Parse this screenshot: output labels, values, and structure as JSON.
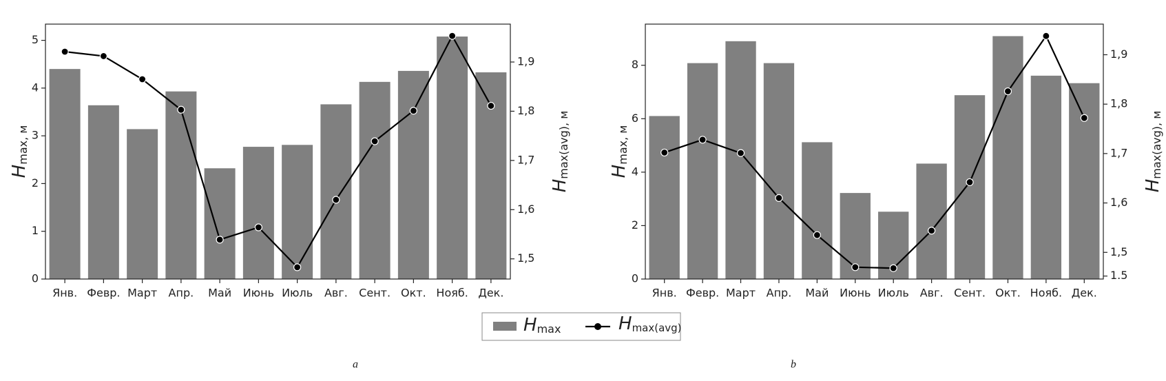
{
  "chart_data": [
    {
      "type": "combo",
      "panel_label": "a",
      "categories": [
        "Янв.",
        "Февр.",
        "Март",
        "Апр.",
        "Май",
        "Июнь",
        "Июль",
        "Авг.",
        "Сент.",
        "Окт.",
        "Нояб.",
        "Дек."
      ],
      "ylabel": "H",
      "ylabel_sub": "max, м",
      "y2label": "H",
      "y2label_sub": "max(avg), м",
      "ylim": [
        0,
        5.34
      ],
      "yticks": [
        0,
        1,
        2,
        3,
        4,
        5
      ],
      "y2lim": [
        1.459,
        1.977
      ],
      "y2ticks": [
        {
          "value": 1.5,
          "label": "1,5"
        },
        {
          "value": 1.6,
          "label": "1,6"
        },
        {
          "value": 1.7,
          "label": "1,7"
        },
        {
          "value": 1.8,
          "label": "1,8"
        },
        {
          "value": 1.9,
          "label": "1,9"
        }
      ],
      "series": [
        {
          "name": "H",
          "name_sub": "max",
          "type": "bar",
          "color": "#808080",
          "values": [
            4.4,
            3.64,
            3.14,
            3.93,
            2.32,
            2.77,
            2.81,
            3.66,
            4.13,
            4.36,
            5.08,
            4.33
          ]
        },
        {
          "name": "H",
          "name_sub": "max(avg)",
          "type": "line",
          "axis": "y2",
          "color": "#000000",
          "values": [
            1.921,
            1.912,
            1.865,
            1.803,
            1.539,
            1.564,
            1.483,
            1.62,
            1.739,
            1.801,
            1.953,
            1.811
          ]
        }
      ]
    },
    {
      "type": "combo",
      "panel_label": "b",
      "categories": [
        "Янв.",
        "Февр.",
        "Март",
        "Апр.",
        "Май",
        "Июнь",
        "Июль",
        "Авг.",
        "Сент.",
        "Окт.",
        "Нояб.",
        "Дек."
      ],
      "ylabel": "H",
      "ylabel_sub": "max, м",
      "y2label": "H",
      "y2label_sub": "max(avg), м",
      "ylim": [
        0,
        9.54
      ],
      "yticks": [
        0,
        2,
        4,
        6,
        8
      ],
      "y2lim": [
        1.446,
        1.962
      ],
      "y2ticks": [
        {
          "value": 1.452,
          "label": "1.5"
        },
        {
          "value": 1.5,
          "label": "1,5"
        },
        {
          "value": 1.6,
          "label": "1,6"
        },
        {
          "value": 1.7,
          "label": "1,7"
        },
        {
          "value": 1.8,
          "label": "1,8"
        },
        {
          "value": 1.9,
          "label": "1,9"
        }
      ],
      "series": [
        {
          "name": "H",
          "name_sub": "max",
          "type": "bar",
          "color": "#808080",
          "values": [
            6.1,
            8.08,
            8.9,
            8.08,
            5.12,
            3.22,
            2.52,
            4.32,
            6.88,
            9.09,
            7.61,
            7.33
          ]
        },
        {
          "name": "H",
          "name_sub": "max(avg)",
          "type": "line",
          "axis": "y2",
          "color": "#000000",
          "values": [
            1.702,
            1.728,
            1.701,
            1.61,
            1.535,
            1.47,
            1.468,
            1.544,
            1.642,
            1.826,
            1.938,
            1.772
          ]
        }
      ]
    }
  ]
}
